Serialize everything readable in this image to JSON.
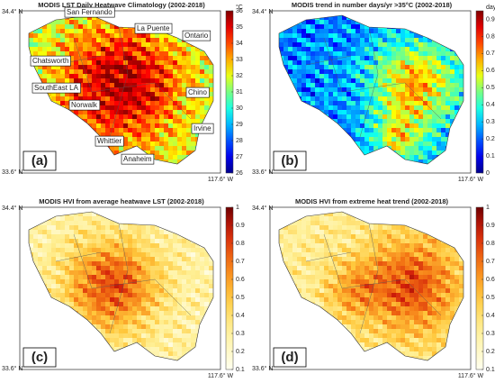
{
  "panels": [
    {
      "title": "MODIS LST Daily Heatwave Climatology (2002-2018)",
      "letter": "(a)",
      "lat_labels": [
        "34.4° N",
        "33.6° N"
      ],
      "lon_label": "117.6° W",
      "colorbar": {
        "unit": "°C",
        "colormap": "jet",
        "lim": [
          26,
          36
        ],
        "ticks": [
          26,
          27,
          28,
          29,
          30,
          31,
          32,
          33,
          34,
          35,
          36
        ]
      },
      "places": [
        "San Fernando",
        "Chatsworth",
        "La Puente",
        "Ontario",
        "SouthEast LA",
        "Norwalk",
        "Chino",
        "Whittier",
        "Irvine",
        "Anaheim"
      ]
    },
    {
      "title": "MODIS trend in number days/yr >35°C (2002-2018)",
      "letter": "(b)",
      "lat_labels": [
        "34.4° N",
        "33.6° N"
      ],
      "lon_label": "117.6° W",
      "colorbar": {
        "unit": "days/yr",
        "colormap": "jet",
        "lim": [
          0,
          0.95
        ],
        "ticks": [
          0,
          0.1,
          0.2,
          0.3,
          0.4,
          0.5,
          0.6,
          0.7,
          0.8,
          0.9
        ]
      }
    },
    {
      "title": "MODIS HVI from average heatwave LST (2002-2018)",
      "letter": "(c)",
      "lat_labels": [
        "34.4° N",
        "33.6° N"
      ],
      "lon_label": "117.6° W",
      "colorbar": {
        "colormap": "heat",
        "lim": [
          0.1,
          1
        ],
        "ticks": [
          0.1,
          0.2,
          0.3,
          0.4,
          0.5,
          0.6,
          0.7,
          0.8,
          0.9,
          1
        ]
      }
    },
    {
      "title": "MODIS HVI from extreme heat trend (2002-2018)",
      "letter": "(d)",
      "lat_labels": [
        "34.4° N",
        "33.6° N"
      ],
      "lon_label": "117.6° W",
      "colorbar": {
        "colormap": "heat",
        "lim": [
          0.1,
          1
        ],
        "ticks": [
          0.1,
          0.2,
          0.3,
          0.4,
          0.5,
          0.6,
          0.7,
          0.8,
          0.9,
          1
        ]
      }
    }
  ]
}
